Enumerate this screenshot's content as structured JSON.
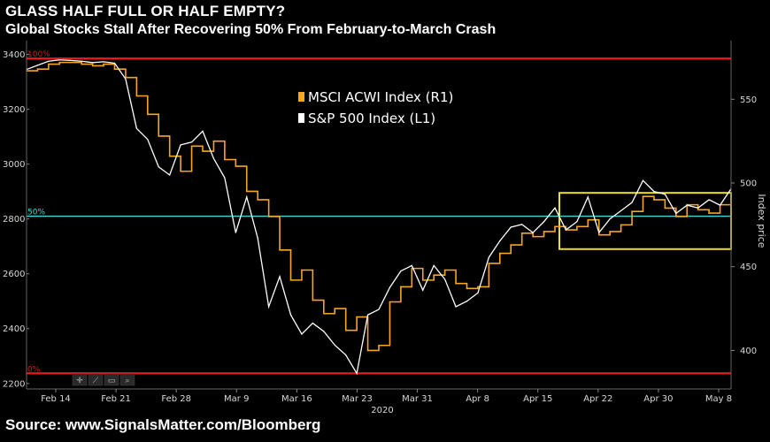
{
  "header": {
    "title": "GLASS HALF FULL OR HALF EMPTY?",
    "subtitle": "Global Stocks Stall After Recovering 50% From February-to-March Crash"
  },
  "footer": {
    "source": "Source: www.SignalsMatter.com/Bloomberg"
  },
  "colors": {
    "background": "#000000",
    "msci": "#f5a623",
    "spx": "#ffffff",
    "ref_red": "#e8141b",
    "ref_50": "#3fd6e0",
    "highlight_box": "#e8e020"
  },
  "toolbar": {
    "icons": [
      "crosshair-icon",
      "draw-icon",
      "frame-icon",
      "zoom-icon"
    ]
  },
  "chart_data": {
    "type": "line",
    "xlabel": "2020",
    "x_ticks": [
      "Feb 14",
      "Feb 21",
      "Feb 28",
      "Mar 9",
      "Mar 16",
      "Mar 23",
      "Mar 31",
      "Apr 8",
      "Apr 15",
      "Apr 22",
      "Apr 30",
      "May 8"
    ],
    "left_axis": {
      "ticks": [
        2200,
        2400,
        2600,
        2800,
        3000,
        3200,
        3400
      ],
      "ylim": [
        2180,
        3450
      ]
    },
    "right_axis": {
      "title": "Index price",
      "ticks": [
        400,
        450,
        500,
        550
      ],
      "ylim": [
        377,
        585
      ]
    },
    "reference_lines": [
      {
        "label": "100%",
        "left_value": 3385
      },
      {
        "label": "50%",
        "left_value": 2810
      },
      {
        "label": "0%",
        "left_value": 2237
      }
    ],
    "legend": {
      "placement": "top-center",
      "entries": [
        "MSCI ACWI Index  (R1)",
        "S&P 500 Index  (L1)"
      ]
    },
    "highlight_box": {
      "left_value_top": 2895,
      "left_value_bottom": 2690,
      "x_start": "Apr 17",
      "x_end": "May 8"
    },
    "series": [
      {
        "name": "MSCI ACWI Index  (R1)",
        "axis": "right",
        "style": "step",
        "points": [
          [
            0,
            567
          ],
          [
            3,
            568
          ],
          [
            6,
            571
          ],
          [
            9,
            572
          ],
          [
            12,
            572
          ],
          [
            15,
            571
          ],
          [
            18,
            570
          ],
          [
            21,
            571
          ],
          [
            24,
            568
          ],
          [
            27,
            563
          ],
          [
            30,
            552
          ],
          [
            33,
            541
          ],
          [
            36,
            528
          ],
          [
            39,
            516
          ],
          [
            42,
            507
          ],
          [
            45,
            522
          ],
          [
            48,
            519
          ],
          [
            51,
            525
          ],
          [
            54,
            514
          ],
          [
            57,
            510
          ],
          [
            60,
            495
          ],
          [
            63,
            490
          ],
          [
            66,
            480
          ],
          [
            69,
            460
          ],
          [
            72,
            442
          ],
          [
            75,
            448
          ],
          [
            78,
            430
          ],
          [
            81,
            422
          ],
          [
            84,
            425
          ],
          [
            87,
            412
          ],
          [
            90,
            420
          ],
          [
            93,
            400
          ],
          [
            96,
            403
          ],
          [
            99,
            429
          ],
          [
            102,
            438
          ],
          [
            105,
            449
          ],
          [
            108,
            442
          ],
          [
            111,
            445
          ],
          [
            114,
            448
          ],
          [
            117,
            440
          ],
          [
            120,
            437
          ],
          [
            123,
            438
          ],
          [
            126,
            452
          ],
          [
            129,
            458
          ],
          [
            132,
            463
          ],
          [
            135,
            470
          ],
          [
            138,
            468
          ],
          [
            141,
            471
          ],
          [
            144,
            474
          ],
          [
            147,
            472
          ],
          [
            150,
            474
          ],
          [
            153,
            478
          ],
          [
            156,
            469
          ],
          [
            159,
            471
          ],
          [
            162,
            475
          ],
          [
            165,
            483
          ],
          [
            168,
            492
          ],
          [
            171,
            490
          ],
          [
            174,
            485
          ],
          [
            177,
            480
          ],
          [
            180,
            487
          ],
          [
            183,
            484
          ],
          [
            186,
            482
          ],
          [
            189,
            487
          ],
          [
            192,
            490
          ]
        ]
      },
      {
        "name": "S&P 500 Index  (L1)",
        "axis": "left",
        "style": "line",
        "points": [
          [
            0,
            3345
          ],
          [
            3,
            3360
          ],
          [
            6,
            3375
          ],
          [
            9,
            3380
          ],
          [
            12,
            3378
          ],
          [
            15,
            3375
          ],
          [
            18,
            3370
          ],
          [
            21,
            3373
          ],
          [
            24,
            3368
          ],
          [
            27,
            3310
          ],
          [
            30,
            3130
          ],
          [
            33,
            3090
          ],
          [
            36,
            2990
          ],
          [
            39,
            2960
          ],
          [
            42,
            3070
          ],
          [
            45,
            3080
          ],
          [
            48,
            3120
          ],
          [
            51,
            3020
          ],
          [
            54,
            2950
          ],
          [
            57,
            2750
          ],
          [
            60,
            2880
          ],
          [
            63,
            2730
          ],
          [
            66,
            2480
          ],
          [
            69,
            2590
          ],
          [
            72,
            2450
          ],
          [
            75,
            2380
          ],
          [
            78,
            2420
          ],
          [
            81,
            2390
          ],
          [
            84,
            2340
          ],
          [
            87,
            2304
          ],
          [
            90,
            2237
          ],
          [
            93,
            2450
          ],
          [
            96,
            2470
          ],
          [
            99,
            2550
          ],
          [
            102,
            2610
          ],
          [
            105,
            2630
          ],
          [
            108,
            2540
          ],
          [
            111,
            2630
          ],
          [
            114,
            2580
          ],
          [
            117,
            2480
          ],
          [
            120,
            2500
          ],
          [
            123,
            2530
          ],
          [
            126,
            2660
          ],
          [
            129,
            2720
          ],
          [
            132,
            2770
          ],
          [
            135,
            2780
          ],
          [
            138,
            2750
          ],
          [
            141,
            2790
          ],
          [
            144,
            2840
          ],
          [
            147,
            2760
          ],
          [
            150,
            2790
          ],
          [
            153,
            2880
          ],
          [
            156,
            2750
          ],
          [
            159,
            2800
          ],
          [
            162,
            2830
          ],
          [
            165,
            2860
          ],
          [
            168,
            2940
          ],
          [
            171,
            2900
          ],
          [
            174,
            2890
          ],
          [
            177,
            2820
          ],
          [
            180,
            2850
          ],
          [
            183,
            2840
          ],
          [
            186,
            2870
          ],
          [
            189,
            2850
          ],
          [
            192,
            2910
          ]
        ]
      }
    ]
  }
}
